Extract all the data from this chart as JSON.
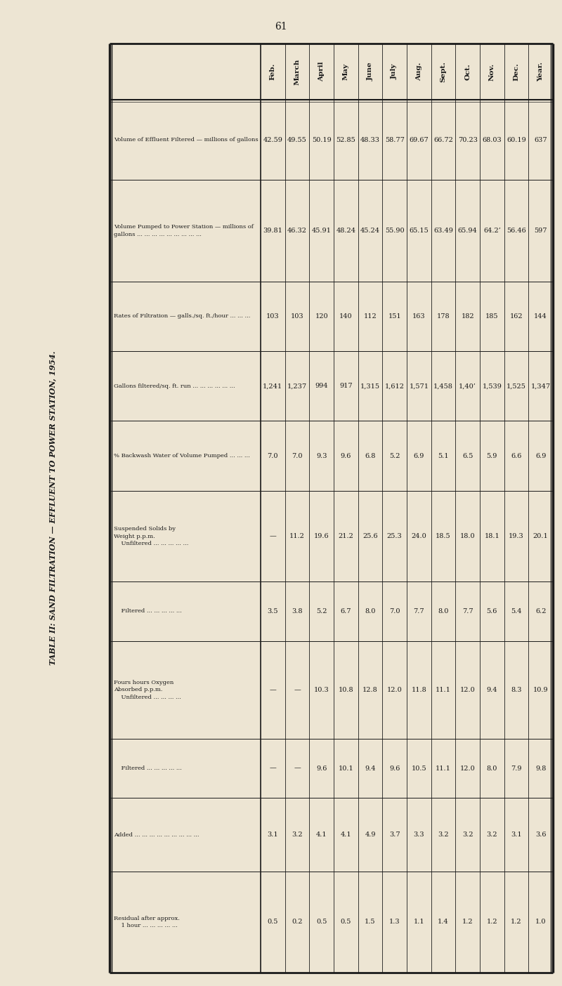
{
  "title": "TABLE II: SAND FILTRATION — EFFLUENT TO POWER STATION, 1954.",
  "page_number": "61",
  "columns": [
    "Feb.",
    "March",
    "April",
    "May",
    "June",
    "July",
    "Aug.",
    "Sept.",
    "Oct.",
    "Nov.",
    "Dec.",
    "Year."
  ],
  "data": [
    [
      "42.59",
      "49.55",
      "50.19",
      "52.85",
      "48.33",
      "58.77",
      "69.67",
      "66.72",
      "70.23",
      "68.03",
      "60.19",
      "637"
    ],
    [
      "39.81",
      "46.32",
      "45.91",
      "48.24",
      "45.24",
      "55.90",
      "65.15",
      "63.49",
      "65.94",
      "64.2’",
      "56.46",
      "597"
    ],
    [
      "103",
      "103",
      "120",
      "140",
      "112",
      "151",
      "163",
      "178",
      "182",
      "185",
      "162",
      "144"
    ],
    [
      "1,241",
      "1,237",
      "994",
      "917",
      "1,315",
      "1,612",
      "1,571",
      "1,458",
      "1,40’",
      "1,539",
      "1,525",
      "1,347"
    ],
    [
      "7.0",
      "7.0",
      "9.3",
      "9.6",
      "6.8",
      "5.2",
      "6.9",
      "5.1",
      "6.5",
      "5.9",
      "6.6",
      "6.9"
    ],
    [
      "—",
      "11.2",
      "19.6",
      "21.2",
      "25.6",
      "25.3",
      "24.0",
      "18.5",
      "18.0",
      "18.1",
      "19.3",
      "20.1"
    ],
    [
      "3.5",
      "3.8",
      "5.2",
      "6.7",
      "8.0",
      "7.0",
      "7.7",
      "8.0",
      "7.7",
      "5.6",
      "5.4",
      "6.2"
    ],
    [
      "—",
      "—",
      "10.3",
      "10.8",
      "12.8",
      "12.0",
      "11.8",
      "11.1",
      "12.0",
      "9.4",
      "8.3",
      "10.9"
    ],
    [
      "—",
      "—",
      "9.6",
      "10.1",
      "9.4",
      "9.6",
      "10.5",
      "11.1",
      "12.0",
      "8.0",
      "7.9",
      "9.8"
    ],
    [
      "3.1",
      "3.2",
      "4.1",
      "4.1",
      "4.9",
      "3.7",
      "3.3",
      "3.2",
      "3.2",
      "3.2",
      "3.1",
      "3.6"
    ],
    [
      "0.5",
      "0.2",
      "0.5",
      "0.5",
      "1.5",
      "1.3",
      "1.1",
      "1.4",
      "1.2",
      "1.2",
      "1.2",
      "1.0"
    ]
  ],
  "row_labels": [
    "Volume of Effluent Filtered — millions of gallons",
    "Volume Pumped to Power Station — millions of\ngallons ... ... ... ... ... ... ... ... ...",
    "Rates of Filtration — galls./sq. ft./hour ... ... ...",
    "Gallons filtered/sq. ft. run ... ... ... ... ... ...",
    "% Backwash Water of Volume Pumped ... ... ...",
    "Suspended Solids by\nWeight p.p.m.\n    Unfiltered ... ... ... ... ...",
    "    Filtered ... ... ... ... ...",
    "Fours hours Oxygen\nAbsorbed p.p.m.\n    Unfiltered ... ... ... ...",
    "    Filtered ... ... ... ... ...",
    "Added ... ... ... ... ... ... ... ... ...",
    "Residual after approx.\n    1 hour ... ... ... ... ..."
  ],
  "bg_color": "#ede5d3",
  "text_color": "#1a1a1a",
  "border_color": "#1a1a1a"
}
